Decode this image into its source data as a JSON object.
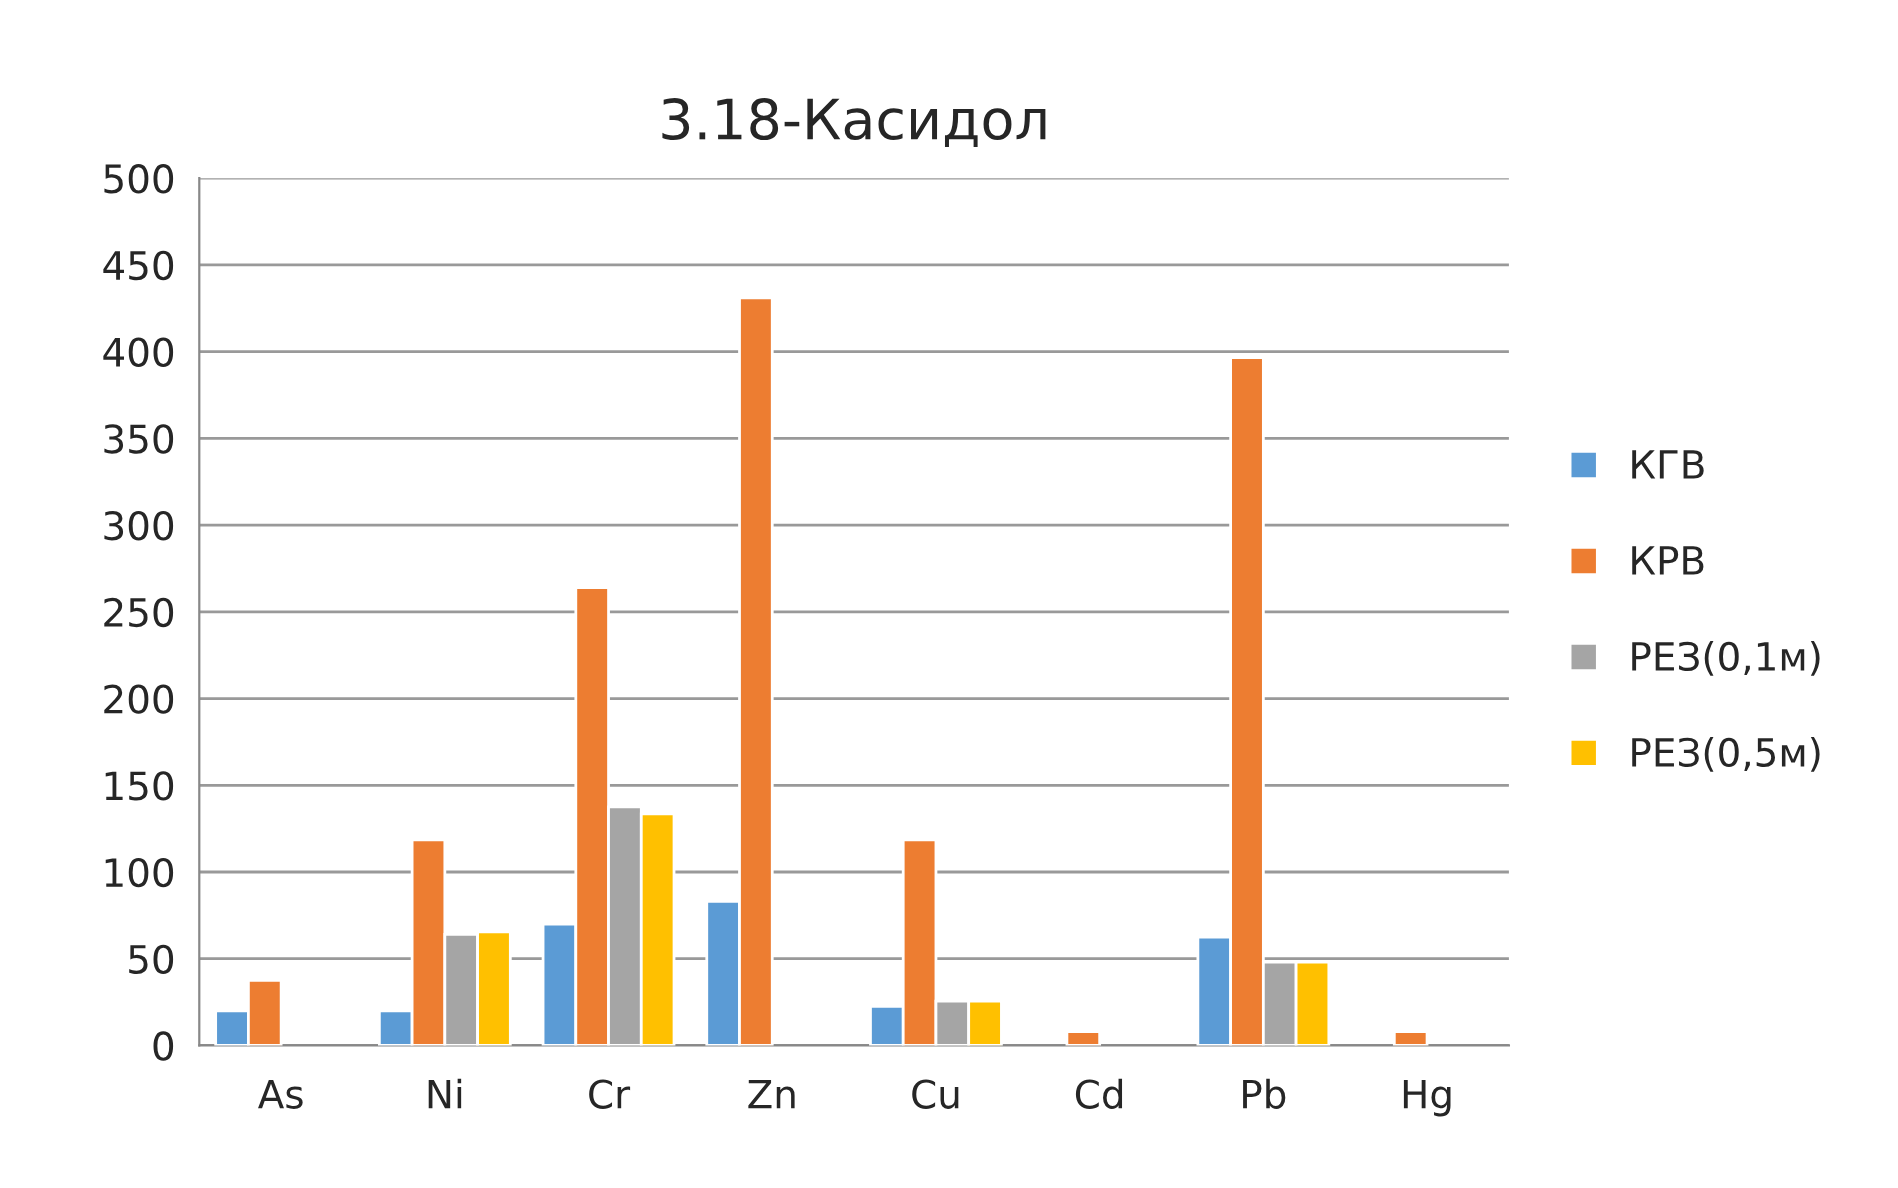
{
  "chart_data": {
    "type": "bar",
    "title": "3.18-Касидол",
    "categories": [
      "As",
      "Ni",
      "Cr",
      "Zn",
      "Cu",
      "Cd",
      "Pb",
      "Hg"
    ],
    "series": [
      {
        "name": "КГВ",
        "color": "#5b9bd5",
        "values": [
          20,
          20,
          70,
          83,
          22.5,
          null,
          62.5,
          null
        ]
      },
      {
        "name": "КРВ",
        "color": "#ed7d31",
        "values": [
          37.5,
          118.5,
          264,
          431,
          118.5,
          8,
          396.5,
          8
        ]
      },
      {
        "name": "РЕЗ(0,1м)",
        "color": "#a5a5a5",
        "values": [
          null,
          64,
          137.5,
          null,
          25.5,
          null,
          48,
          null
        ]
      },
      {
        "name": "РЕЗ(0,5м)",
        "color": "#ffc000",
        "values": [
          null,
          65.5,
          133.5,
          null,
          25.5,
          null,
          48,
          null
        ]
      }
    ],
    "ylim": [
      0,
      500
    ],
    "yticks": [
      0,
      50,
      100,
      150,
      200,
      250,
      300,
      350,
      400,
      450,
      500
    ],
    "grid": "y",
    "legend": "right"
  }
}
